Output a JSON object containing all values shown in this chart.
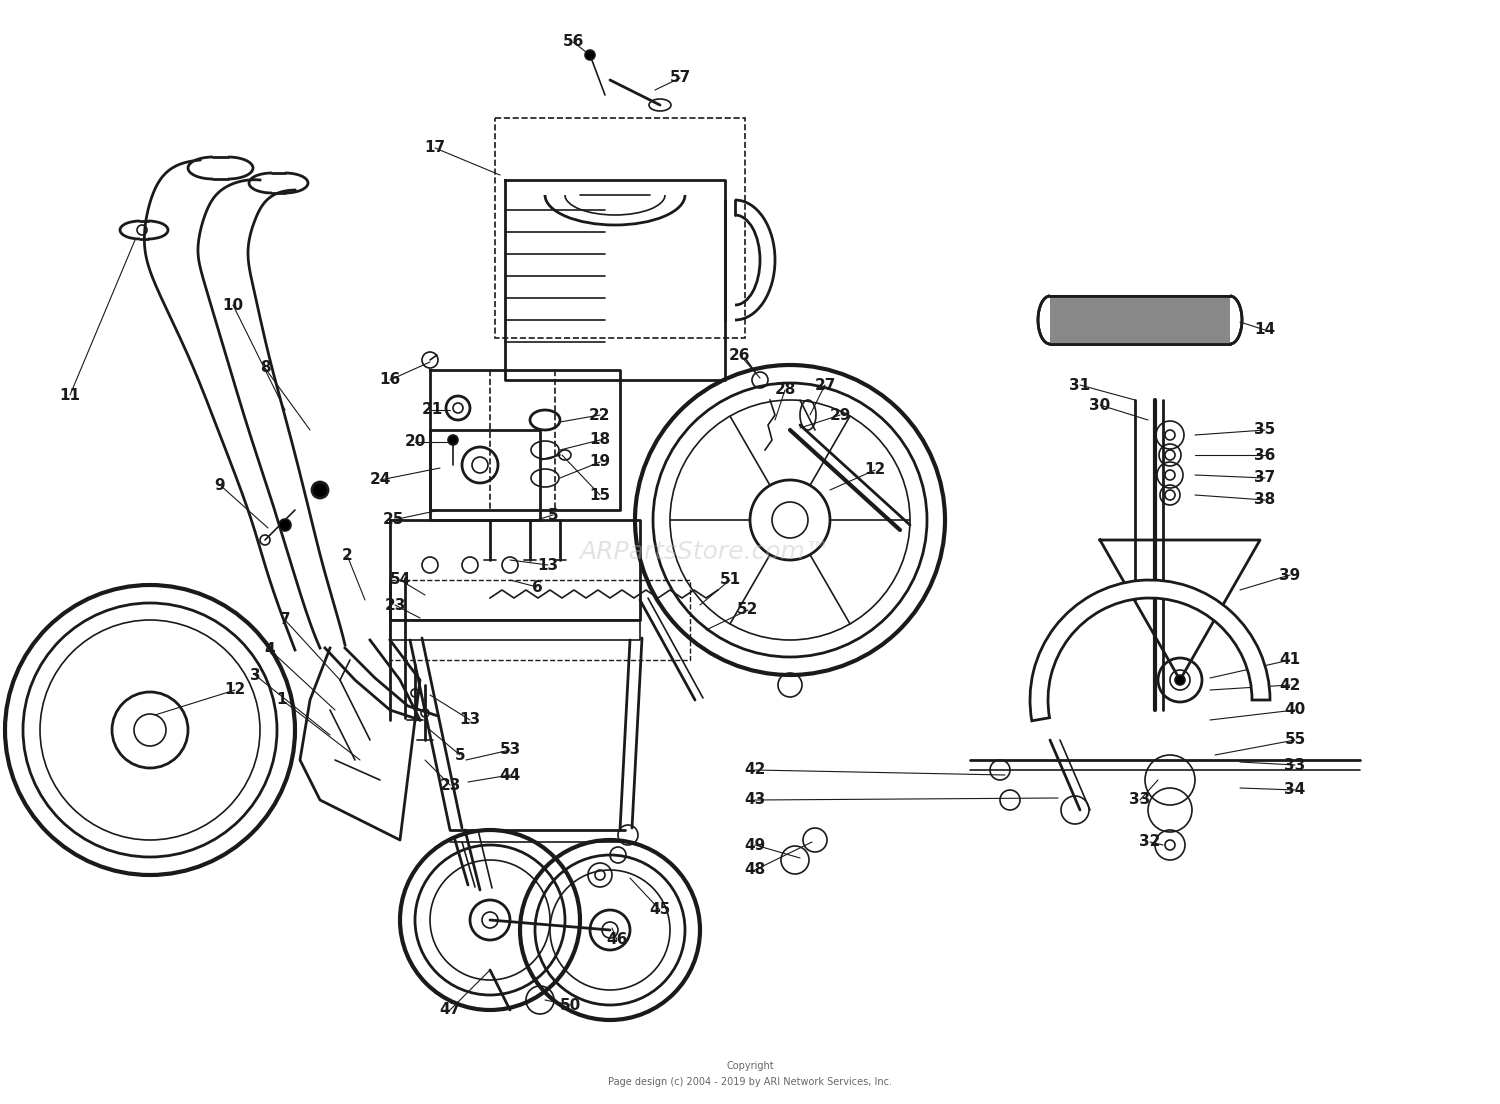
{
  "background_color": "#ffffff",
  "line_color": "#1a1a1a",
  "label_color": "#1a1a1a",
  "copyright_text": "Copyright\nPage design (c) 2004 - 2019 by ARI Network Services, Inc.",
  "watermark_text": "ARPartsStore.com™",
  "fig_width": 15.0,
  "fig_height": 11.04,
  "dpi": 100
}
